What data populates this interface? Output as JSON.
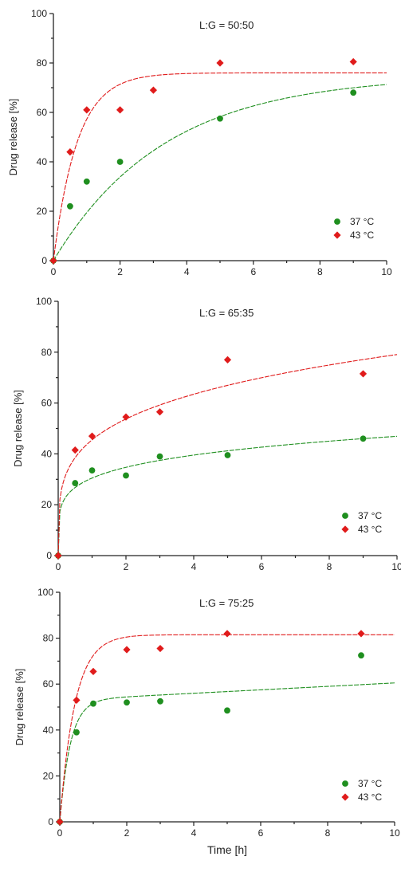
{
  "colors": {
    "c37": "#1f8f1f",
    "c43": "#e01b1b",
    "axis": "#222222"
  },
  "chart_data": [
    {
      "type": "scatter",
      "title": "L:G = 50:50",
      "ylabel": "Drug release [%]",
      "xlabel": "",
      "xlim": [
        0,
        10
      ],
      "ylim": [
        0,
        100
      ],
      "xticks": [
        "0",
        "2",
        "4",
        "6",
        "8",
        "10"
      ],
      "yticks": [
        "0",
        "20",
        "40",
        "60",
        "80",
        "100"
      ],
      "grid": false,
      "legend": "bottom-right",
      "series": [
        {
          "name": "37 °C",
          "marker": "circle",
          "x": [
            0,
            0.5,
            1,
            2,
            5,
            9
          ],
          "y": [
            0,
            22,
            32,
            40,
            57.5,
            68
          ],
          "fit": {
            "kind": "first-order",
            "ymax": 75,
            "k": 0.3,
            "dashed": true
          }
        },
        {
          "name": "43 °C",
          "marker": "diamond",
          "x": [
            0,
            0.5,
            1,
            2,
            3,
            5,
            9
          ],
          "y": [
            0,
            44,
            61,
            61,
            69,
            80,
            80.5
          ],
          "fit": {
            "kind": "first-order",
            "ymax": 76,
            "k": 1.4,
            "dashed": true
          }
        }
      ]
    },
    {
      "type": "scatter",
      "title": "L:G = 65:35",
      "ylabel": "Drug release [%]",
      "xlabel": "",
      "xlim": [
        0,
        10
      ],
      "ylim": [
        0,
        100
      ],
      "xticks": [
        "0",
        "2",
        "4",
        "6",
        "8",
        "10"
      ],
      "yticks": [
        "0",
        "20",
        "40",
        "60",
        "80",
        "100"
      ],
      "grid": false,
      "legend": "bottom-right",
      "series": [
        {
          "name": "37 °C",
          "marker": "circle",
          "x": [
            0,
            0.5,
            1,
            2,
            3,
            5,
            9
          ],
          "y": [
            0,
            28.5,
            33.5,
            31.5,
            39,
            39.5,
            46
          ],
          "fit": {
            "kind": "power",
            "a": 30.5,
            "b": 0.187,
            "dashed": true
          }
        },
        {
          "name": "43 °C",
          "marker": "diamond",
          "x": [
            0,
            0.5,
            1,
            2,
            3,
            5,
            9
          ],
          "y": [
            0,
            41.5,
            47,
            54.5,
            56.5,
            77,
            71.5
          ],
          "fit": {
            "kind": "power",
            "a": 45.5,
            "b": 0.24,
            "dashed": true
          }
        }
      ]
    },
    {
      "type": "scatter",
      "title": "L:G = 75:25",
      "ylabel": "Drug release [%]",
      "xlabel": "Time [h]",
      "xlim": [
        0,
        10
      ],
      "ylim": [
        0,
        100
      ],
      "xticks": [
        "0",
        "2",
        "4",
        "6",
        "8",
        "10"
      ],
      "yticks": [
        "0",
        "20",
        "40",
        "60",
        "80",
        "100"
      ],
      "grid": false,
      "legend": "bottom-right",
      "series": [
        {
          "name": "37 °C",
          "marker": "circle",
          "x": [
            0,
            0.5,
            1,
            2,
            3,
            5,
            9
          ],
          "y": [
            0,
            39,
            51.5,
            52,
            52.5,
            48.5,
            72.5
          ],
          "fit": {
            "kind": "burst-linear",
            "a": 53,
            "k": 3.2,
            "m": 0.75,
            "dashed": true
          }
        },
        {
          "name": "43 °C",
          "marker": "diamond",
          "x": [
            0,
            0.5,
            1,
            2,
            3,
            5,
            9
          ],
          "y": [
            0,
            53,
            65.5,
            75,
            75.5,
            82,
            82
          ],
          "fit": {
            "kind": "first-order",
            "ymax": 81.5,
            "k": 2.2,
            "dashed": true
          }
        }
      ]
    }
  ]
}
